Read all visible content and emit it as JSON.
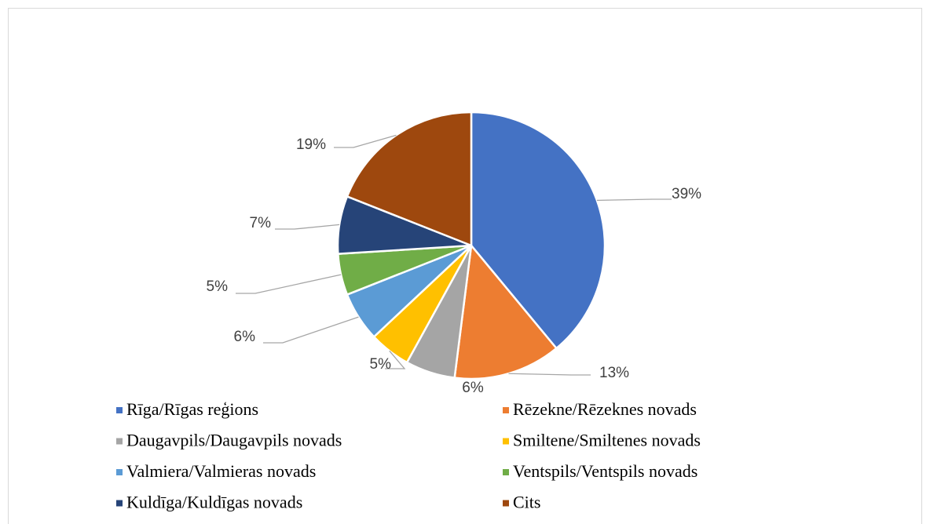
{
  "chart_data": {
    "type": "pie",
    "categories": [
      "Rīga/Rīgas reģions",
      "Rēzekne/Rēzeknes novads",
      "Daugavpils/Daugavpils novads",
      "Smiltene/Smiltenes novads",
      "Valmiera/Valmieras novads",
      "Ventspils/Ventspils novads",
      "Kuldīga/Kuldīgas novads",
      "Cits"
    ],
    "values": [
      39,
      13,
      6,
      5,
      6,
      5,
      7,
      19
    ],
    "value_labels": [
      "39%",
      "13%",
      "6%",
      "5%",
      "6%",
      "5%",
      "7%",
      "19%"
    ],
    "colors": [
      "#4472c4",
      "#ed7d31",
      "#a5a5a5",
      "#ffc000",
      "#5b9bd5",
      "#70ad47",
      "#264478",
      "#9e480e"
    ],
    "legend": "bottom"
  }
}
